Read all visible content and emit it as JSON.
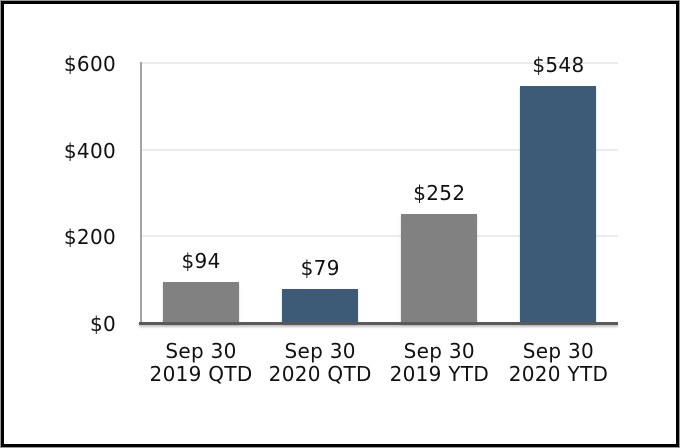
{
  "chart_data": {
    "type": "bar",
    "title": "",
    "xlabel": "",
    "ylabel": "",
    "categories": [
      "Sep 30 2019 QTD",
      "Sep 30 2020 QTD",
      "Sep 30 2019 YTD",
      "Sep 30 2020 YTD"
    ],
    "category_lines": [
      [
        "Sep 30",
        "2019 QTD"
      ],
      [
        "Sep 30",
        "2020 QTD"
      ],
      [
        "Sep 30",
        "2019 YTD"
      ],
      [
        "Sep 30",
        "2020 YTD"
      ]
    ],
    "values": [
      94,
      79,
      252,
      548
    ],
    "value_labels": [
      "$94",
      "$79",
      "$252",
      "$548"
    ],
    "bar_colors": [
      "#818181",
      "#3D5B76",
      "#818181",
      "#3D5B76"
    ],
    "y_ticks": [
      {
        "value": 600,
        "label": "$600"
      },
      {
        "value": 400,
        "label": "$400"
      },
      {
        "value": 200,
        "label": "$200"
      },
      {
        "value": 0,
        "label": "$0"
      }
    ],
    "ylim": [
      0,
      600
    ],
    "grid": "horizontal",
    "legend": "none",
    "colors": {
      "gray_bar": "#818181",
      "blue_bar": "#3D5B76",
      "gridline": "#EBEBEB",
      "x_axis_line": "#595959",
      "y_axis_line": "#A3A3A3",
      "text": "#111111",
      "frame_border": "#000000",
      "background": "#FFFFFF"
    }
  }
}
